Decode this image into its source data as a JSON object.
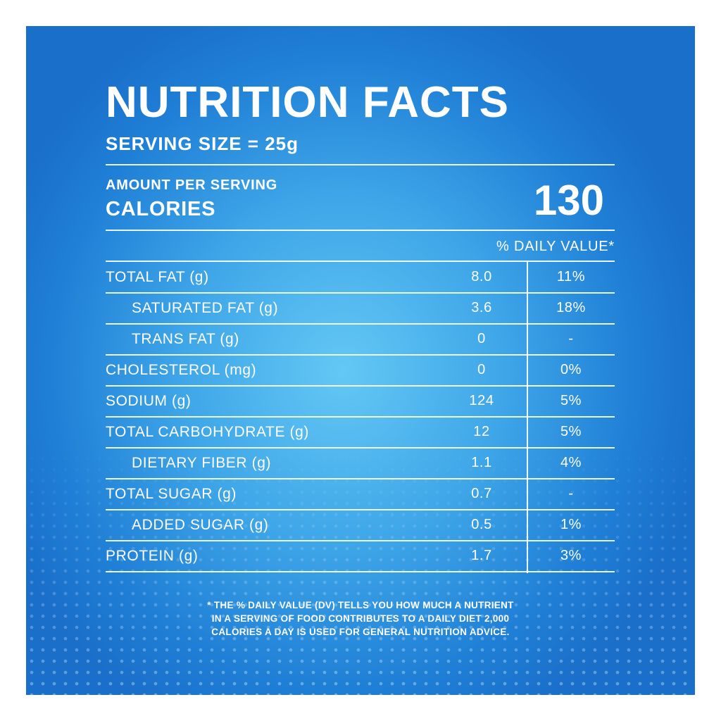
{
  "header": {
    "title": "NUTRITION FACTS",
    "serving_size": "SERVING SIZE = 25g"
  },
  "calories": {
    "amount_per_serving": "AMOUNT PER SERVING",
    "label": "CALORIES",
    "value": "130"
  },
  "daily_value_header": "% DAILY VALUE*",
  "table": {
    "rows": [
      {
        "name": "TOTAL FAT (g)",
        "amount": "8.0",
        "dv": "11%",
        "sub": [
          {
            "name": "SATURATED FAT (g)",
            "amount": "3.6",
            "dv": "18%"
          },
          {
            "name": "TRANS FAT (g)",
            "amount": "0",
            "dv": "-"
          }
        ]
      },
      {
        "name": "CHOLESTEROL (mg)",
        "amount": "0",
        "dv": "0%"
      },
      {
        "name": "SODIUM (g)",
        "amount": "124",
        "dv": "5%"
      },
      {
        "name": "TOTAL CARBOHYDRATE (g)",
        "amount": "12",
        "dv": "5%",
        "sub": [
          {
            "name": "DIETARY FIBER (g)",
            "amount": "1.1",
            "dv": "4%"
          }
        ]
      },
      {
        "name": "TOTAL SUGAR (g)",
        "amount": "0.7",
        "dv": "-",
        "sub": [
          {
            "name": "ADDED SUGAR (g)",
            "amount": "0.5",
            "dv": "1%"
          }
        ]
      },
      {
        "name": "PROTEIN (g)",
        "amount": "1.7",
        "dv": "3%"
      }
    ]
  },
  "footnote": {
    "lines": [
      "* THE % DAILY VALUE (DV) TELLS YOU HOW MUCH A NUTRIENT",
      "IN A SERVING OF FOOD CONTRIBUTES TO A DAILY DIET 2,000",
      "CALORIES A DAY IS USED FOR GENERAL NUTRITION ADVICE."
    ]
  }
}
